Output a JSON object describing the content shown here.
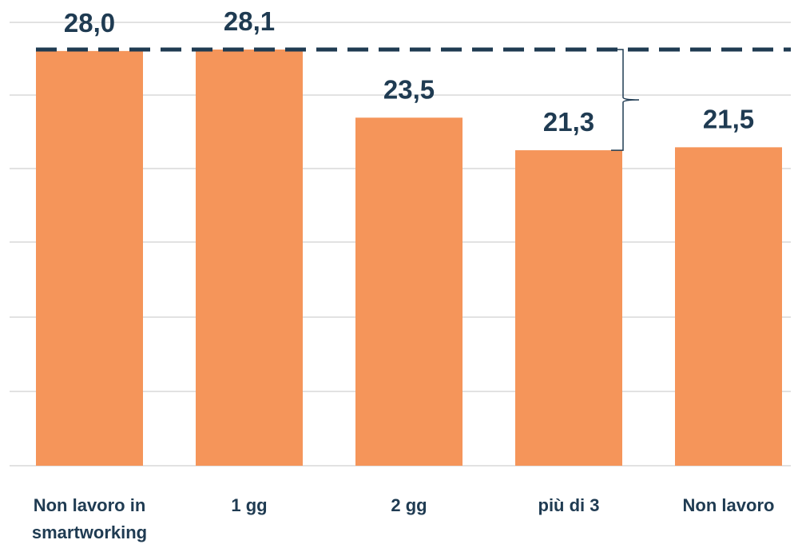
{
  "chart_data": {
    "type": "bar",
    "categories": [
      "Non lavoro in smartworking",
      "1 gg",
      "2 gg",
      "più di 3",
      "Non lavoro"
    ],
    "category_lines": [
      [
        "Non lavoro in",
        "smartworking"
      ],
      [
        "1 gg"
      ],
      [
        "2 gg"
      ],
      [
        "più di 3"
      ],
      [
        "Non lavoro"
      ]
    ],
    "values": [
      28.0,
      28.1,
      23.5,
      21.3,
      21.5
    ],
    "value_labels": [
      "28,0",
      "28,1",
      "23,5",
      "21,3",
      "21,5"
    ],
    "ylim": [
      0,
      28.1
    ],
    "grid": true,
    "bar_color": "#f5955a",
    "label_color": "#1f3b52",
    "reference_line": {
      "value": 28.1,
      "style": "dashed",
      "color": "#1f3b52"
    },
    "bracket": {
      "from": 28.1,
      "to": 21.3
    }
  }
}
